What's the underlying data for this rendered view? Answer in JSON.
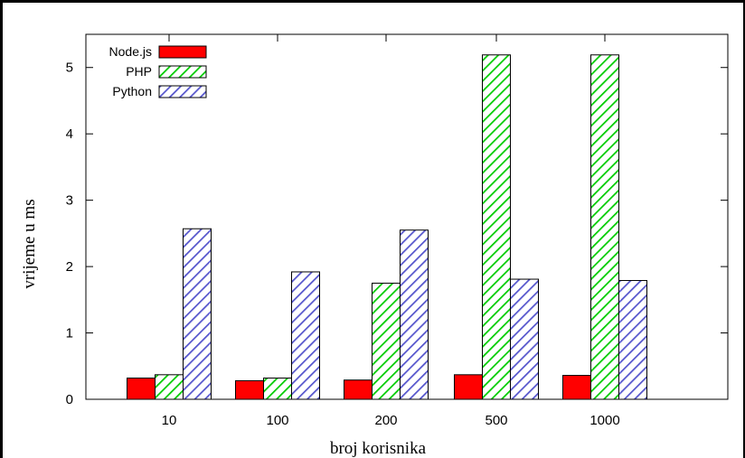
{
  "chart_data": {
    "type": "bar",
    "title": "",
    "xlabel": "broj korisnika",
    "ylabel": "vrijeme u ms",
    "categories": [
      "10",
      "100",
      "200",
      "500",
      "1000"
    ],
    "ylim": [
      0,
      5.5
    ],
    "yticks": [
      "0",
      "1",
      "2",
      "3",
      "4",
      "5"
    ],
    "grid": false,
    "legend_position": "top-left",
    "series": [
      {
        "name": "Node.js",
        "values": [
          0.32,
          0.28,
          0.29,
          0.37,
          0.36
        ],
        "color": "#ff0000",
        "pattern": "solid"
      },
      {
        "name": "PHP",
        "values": [
          0.37,
          0.32,
          1.75,
          5.19,
          5.19
        ],
        "color": "#00cc00",
        "pattern": "hatch"
      },
      {
        "name": "Python",
        "values": [
          2.57,
          1.92,
          2.55,
          1.81,
          1.79
        ],
        "color": "#5555cc",
        "pattern": "hatch"
      }
    ]
  }
}
